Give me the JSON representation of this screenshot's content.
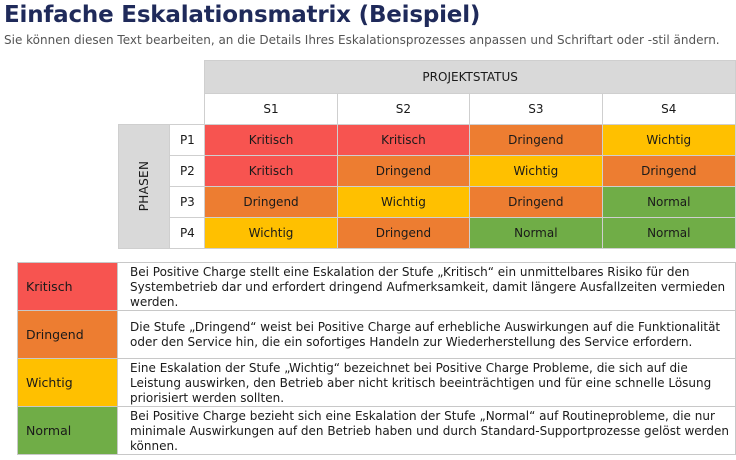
{
  "header": {
    "title": "Einfache Eskalationsmatrix (Beispiel)",
    "subtitle": "Sie können diesen Text bearbeiten, an die Details Ihres Eskalationsprozesses anpassen und Schriftart oder -stil ändern."
  },
  "matrix": {
    "column_group_label": "PROJEKTSTATUS",
    "row_group_label": "PHASEN",
    "columns": [
      "S1",
      "S2",
      "S3",
      "S4"
    ],
    "rows": [
      {
        "label": "P1",
        "cells": [
          "Kritisch",
          "Kritisch",
          "Dringend",
          "Wichtig"
        ]
      },
      {
        "label": "P2",
        "cells": [
          "Kritisch",
          "Dringend",
          "Wichtig",
          "Dringend"
        ]
      },
      {
        "label": "P3",
        "cells": [
          "Dringend",
          "Wichtig",
          "Dringend",
          "Normal"
        ]
      },
      {
        "label": "P4",
        "cells": [
          "Wichtig",
          "Dringend",
          "Normal",
          "Normal"
        ]
      }
    ]
  },
  "colors": {
    "Kritisch": "#f75450",
    "Dringend": "#ed7d31",
    "Wichtig": "#ffc000",
    "Normal": "#70ad47"
  },
  "legend": [
    {
      "level": "Kritisch",
      "description": "Bei Positive Charge stellt eine Eskalation der Stufe „Kritisch“ ein unmittelbares Risiko für den Systembetrieb dar und erfordert dringend Aufmerksamkeit, damit längere Ausfallzeiten vermieden werden."
    },
    {
      "level": "Dringend",
      "description": "Die Stufe „Dringend“ weist bei Positive Charge auf erhebliche Auswirkungen auf die Funktionalität oder den Service hin, die ein sofortiges Handeln zur Wiederherstellung des Service erfordern."
    },
    {
      "level": "Wichtig",
      "description": "Eine Eskalation der Stufe „Wichtig“ bezeichnet bei Positive Charge Probleme, die sich auf die Leistung auswirken, den Betrieb aber nicht kritisch beeinträchtigen und für eine schnelle Lösung priorisiert werden sollten."
    },
    {
      "level": "Normal",
      "description": "Bei Positive Charge bezieht sich eine Eskalation der Stufe „Normal“ auf Routineprobleme, die nur minimale Auswirkungen auf den Betrieb haben und durch Standard-Supportprozesse gelöst werden können."
    }
  ]
}
